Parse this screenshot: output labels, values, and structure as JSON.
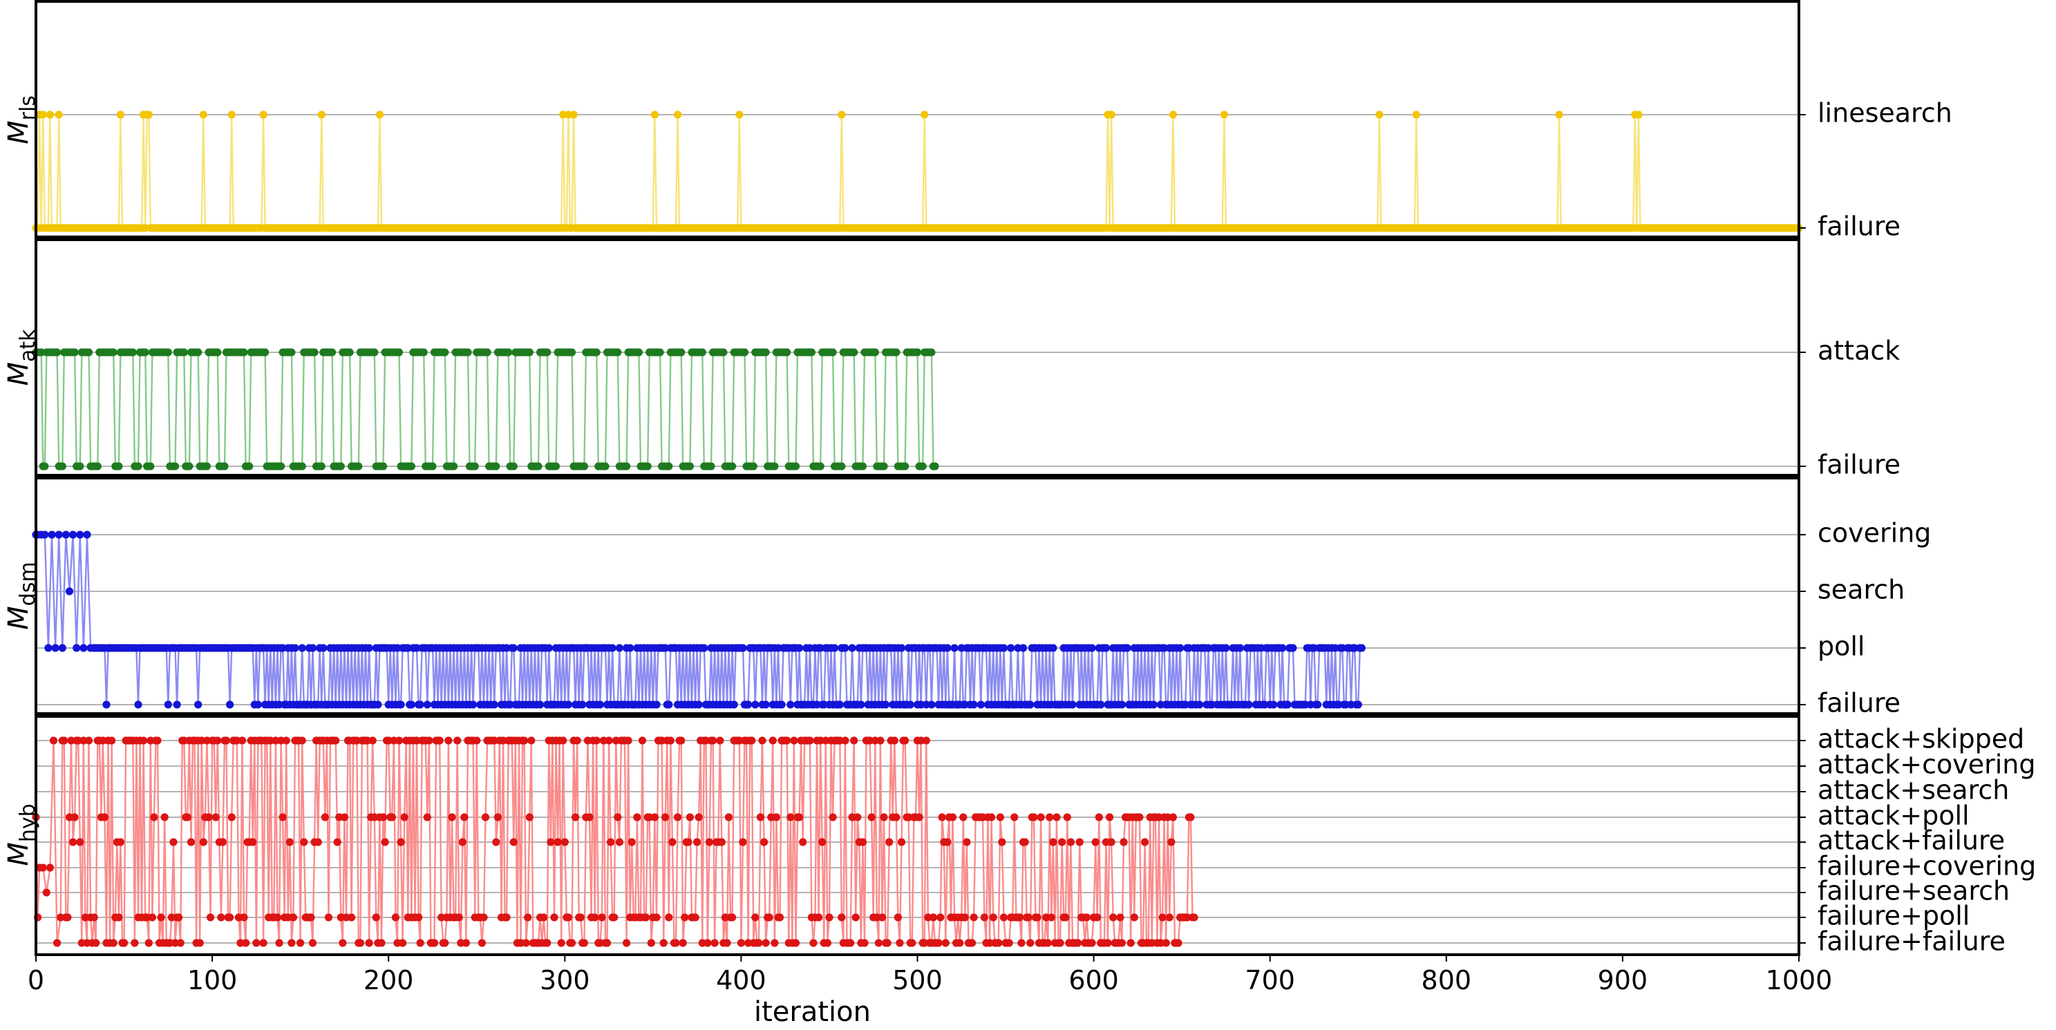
{
  "chart_data": {
    "type": "line",
    "xlabel": "iteration",
    "xlim": [
      0,
      1000
    ],
    "xticks": [
      "0",
      "100",
      "200",
      "300",
      "400",
      "500",
      "600",
      "700",
      "800",
      "900",
      "1000"
    ],
    "panels": [
      {
        "id": "rls",
        "ylabel_main": "M",
        "ylabel_sub": "rls",
        "color_line": "#f7e47a",
        "color_point": "#f2c500",
        "levels": [
          "failure",
          "linesearch"
        ],
        "success_level": 1,
        "success_iterations": [
          2,
          4,
          8,
          13,
          48,
          61,
          63,
          64,
          95,
          111,
          129,
          162,
          195,
          299,
          302,
          305,
          351,
          364,
          399,
          457,
          504,
          608,
          610,
          645,
          674,
          762,
          783,
          864,
          907,
          909
        ],
        "last_iteration": 1000
      },
      {
        "id": "atk",
        "ylabel_main": "M",
        "ylabel_sub": "atk",
        "color_line": "#86c98a",
        "color_point": "#1e7a1e",
        "levels": [
          "failure",
          "attack"
        ],
        "success_level": 1,
        "success_runs": [
          [
            0,
            3
          ],
          [
            6,
            12
          ],
          [
            16,
            22
          ],
          [
            26,
            30
          ],
          [
            36,
            44
          ],
          [
            48,
            55
          ],
          [
            59,
            62
          ],
          [
            66,
            75
          ],
          [
            80,
            84
          ],
          [
            88,
            92
          ],
          [
            98,
            103
          ],
          [
            108,
            118
          ],
          [
            122,
            130
          ],
          [
            140,
            145
          ],
          [
            152,
            158
          ],
          [
            163,
            168
          ],
          [
            174,
            178
          ],
          [
            184,
            192
          ],
          [
            198,
            206
          ],
          [
            214,
            220
          ],
          [
            226,
            232
          ],
          [
            238,
            245
          ],
          [
            250,
            256
          ],
          [
            262,
            268
          ],
          [
            272,
            280
          ],
          [
            286,
            290
          ],
          [
            296,
            304
          ],
          [
            312,
            318
          ],
          [
            324,
            330
          ],
          [
            336,
            342
          ],
          [
            348,
            354
          ],
          [
            360,
            366
          ],
          [
            372,
            378
          ],
          [
            384,
            390
          ],
          [
            396,
            402
          ],
          [
            408,
            414
          ],
          [
            420,
            426
          ],
          [
            432,
            440
          ],
          [
            446,
            452
          ],
          [
            458,
            464
          ],
          [
            470,
            476
          ],
          [
            482,
            488
          ],
          [
            494,
            500
          ],
          [
            504,
            508
          ]
        ],
        "last_iteration": 510
      },
      {
        "id": "dsm",
        "ylabel_main": "M",
        "ylabel_sub": "dsm",
        "color_line": "#8b8bf2",
        "color_point": "#1414d8",
        "levels": [
          "failure",
          "poll",
          "search",
          "covering"
        ],
        "early_phase": [
          [
            0,
            3
          ],
          [
            1,
            3
          ],
          [
            3,
            3
          ],
          [
            5,
            3
          ],
          [
            7,
            1
          ],
          [
            9,
            3
          ],
          [
            11,
            1
          ],
          [
            13,
            3
          ],
          [
            15,
            1
          ],
          [
            17,
            3
          ],
          [
            19,
            2
          ],
          [
            21,
            3
          ],
          [
            23,
            1
          ],
          [
            25,
            3
          ],
          [
            27,
            1
          ],
          [
            29,
            3
          ],
          [
            31,
            1
          ]
        ],
        "poll_failures": [
          40,
          58,
          75,
          80,
          92,
          110
        ],
        "alternate_start": 123,
        "alternate_end": 752
      },
      {
        "id": "hyb",
        "ylabel_main": "M",
        "ylabel_sub": "hyb",
        "color_line": "#fa8c8c",
        "color_point": "#dc1414",
        "levels": [
          "failure+failure",
          "failure+poll",
          "failure+search",
          "failure+covering",
          "attack+failure",
          "attack+poll",
          "attack+search",
          "attack+covering",
          "attack+skipped"
        ],
        "last_attack": 505,
        "last_iteration": 657
      }
    ]
  }
}
